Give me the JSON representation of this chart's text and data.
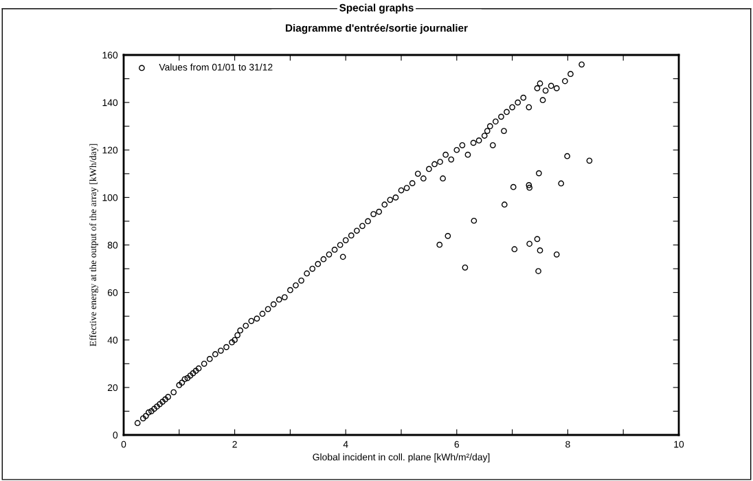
{
  "chart_data": {
    "type": "scatter",
    "title": "Special graphs",
    "subtitle": "Diagramme d'entrée/sortie journalier",
    "xlabel": "Global incident in coll. plane [kWh/m²/day]",
    "ylabel": "Effective energy at the output of the array [kWh/day]",
    "xlim": [
      0,
      10
    ],
    "ylim": [
      0,
      160
    ],
    "xticks": [
      0,
      {
        "value": 1,
        "label": null
      },
      2,
      {
        "value": 3,
        "label": null
      },
      4,
      {
        "value": 5,
        "label": null
      },
      6,
      {
        "value": 7,
        "label": null
      },
      8,
      {
        "value": 9,
        "label": null
      },
      10
    ],
    "yticks": [
      0,
      {
        "value": 10,
        "label": null
      },
      20,
      {
        "value": 30,
        "label": null
      },
      40,
      {
        "value": 50,
        "label": null
      },
      60,
      {
        "value": 70,
        "label": null
      },
      80,
      {
        "value": 90,
        "label": null
      },
      100,
      {
        "value": 110,
        "label": null
      },
      120,
      {
        "value": 130,
        "label": null
      },
      140,
      {
        "value": 150,
        "label": null
      },
      160
    ],
    "marker": "circle",
    "legend": "top left",
    "grid": false,
    "series": [
      {
        "name": "Values from 01/01 to 31/12",
        "color": "#000000",
        "x": [
          0.25,
          0.35,
          0.4,
          0.45,
          0.5,
          0.55,
          0.6,
          0.65,
          0.7,
          0.75,
          0.8,
          0.9,
          1.0,
          1.05,
          1.1,
          1.15,
          1.2,
          1.25,
          1.3,
          1.35,
          1.45,
          1.55,
          1.65,
          1.75,
          1.85,
          1.95,
          2.0,
          2.05,
          2.1,
          2.2,
          2.3,
          2.4,
          2.5,
          2.6,
          2.7,
          2.8,
          2.9,
          3.0,
          3.1,
          3.2,
          3.3,
          3.4,
          3.5,
          3.6,
          3.7,
          3.8,
          3.9,
          3.95,
          4.0,
          4.1,
          4.2,
          4.3,
          4.4,
          4.5,
          4.6,
          4.7,
          4.8,
          4.9,
          5.0,
          5.1,
          5.2,
          5.3,
          5.4,
          5.5,
          5.6,
          5.7,
          5.75,
          5.8,
          5.9,
          6.0,
          6.1,
          6.2,
          6.3,
          6.4,
          6.5,
          6.55,
          6.6,
          6.65,
          6.7,
          6.8,
          6.85,
          6.9,
          7.0,
          7.1,
          7.2,
          7.3,
          7.45,
          7.5,
          7.55,
          7.6,
          7.7,
          7.8,
          7.95,
          8.05,
          8.25,
          5.69,
          5.84,
          6.15,
          6.31,
          6.86,
          7.02,
          7.04,
          7.3,
          7.31,
          7.48,
          7.31,
          7.45,
          7.5,
          7.47,
          7.8,
          7.88,
          7.99,
          8.39
        ],
        "values": [
          5,
          7,
          8,
          9.5,
          10,
          11,
          12,
          13,
          14,
          15,
          16,
          18,
          21,
          22,
          23.5,
          24,
          25,
          26,
          27,
          28,
          30,
          32,
          34,
          35.5,
          37,
          39,
          40,
          42,
          44,
          46,
          48,
          49,
          51,
          53,
          55,
          57,
          58,
          61,
          63,
          65,
          68,
          70,
          72,
          74,
          76,
          78,
          80,
          75,
          82,
          84,
          86,
          88,
          90,
          93,
          94,
          97,
          99,
          100,
          103,
          104,
          106,
          110,
          108,
          112,
          114,
          115,
          108,
          118,
          116,
          120,
          122,
          118,
          123,
          124,
          126,
          128,
          130,
          122,
          132,
          134,
          128,
          136,
          138,
          140,
          142,
          138,
          146,
          148,
          141,
          145,
          147,
          146,
          149,
          152,
          156,
          80.1,
          83.8,
          70.5,
          90.2,
          97.0,
          104.4,
          78.2,
          105.2,
          104.1,
          110.2,
          80.5,
          82.5,
          77.7,
          69.0,
          76.0,
          105.9,
          117.4,
          115.5
        ]
      }
    ]
  }
}
